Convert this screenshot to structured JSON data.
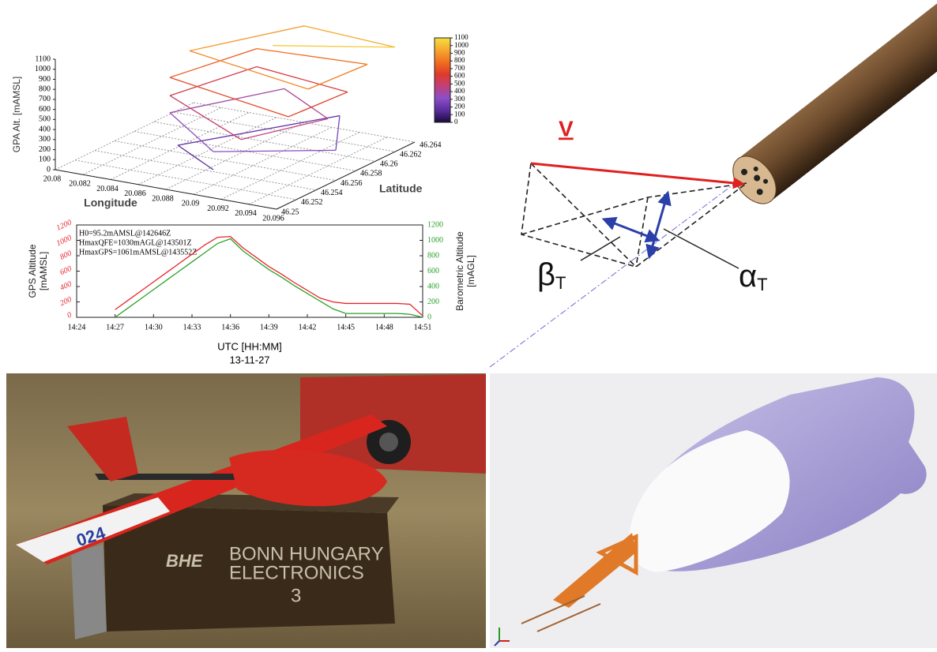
{
  "chart_data": [
    {
      "type": "line3d",
      "zlabel": "GPA Alt. [mAMSL]",
      "xlabel": "Longitude",
      "ylabel": "Latitude",
      "xlim": [
        20.08,
        20.096
      ],
      "xticks": [
        20.08,
        20.082,
        20.084,
        20.086,
        20.088,
        20.09,
        20.092,
        20.094,
        20.096
      ],
      "ylim": [
        46.25,
        46.264
      ],
      "yticks": [
        46.25,
        46.252,
        46.254,
        46.256,
        46.258,
        46.26,
        46.262,
        46.264
      ],
      "zlim": [
        0,
        1100
      ],
      "zticks": [
        0,
        100,
        200,
        300,
        400,
        500,
        600,
        700,
        800,
        900,
        1000,
        1100
      ],
      "colorbar_lim": [
        0,
        1100
      ],
      "colorbar_ticks": [
        0,
        100,
        200,
        300,
        400,
        500,
        600,
        700,
        800,
        900,
        1000,
        1100
      ],
      "colormap": [
        "#1a0a3d",
        "#5a2d9c",
        "#8a4fc8",
        "#c0407a",
        "#e03a2a",
        "#f07020",
        "#f5a830",
        "#f5e040"
      ],
      "grid": true,
      "series": [
        {
          "x": [
            20.09,
            20.086,
            20.092,
            20.096,
            20.09,
            20.084,
            20.088,
            20.094,
            20.092,
            20.084,
            20.086,
            20.094,
            20.094,
            20.084,
            20.086,
            20.094,
            20.094,
            20.084,
            20.088,
            20.096,
            20.09
          ],
          "y": [
            46.252,
            46.254,
            46.262,
            46.256,
            46.252,
            46.256,
            46.262,
            46.258,
            46.252,
            46.256,
            46.262,
            46.26,
            46.254,
            46.256,
            46.262,
            46.262,
            46.256,
            46.258,
            46.264,
            46.262,
            46.258
          ],
          "z": [
            150,
            200,
            260,
            300,
            330,
            380,
            430,
            470,
            500,
            550,
            600,
            640,
            680,
            730,
            780,
            820,
            860,
            900,
            960,
            1040,
            1100
          ]
        }
      ]
    },
    {
      "type": "line",
      "xlabel": "UTC [HH:MM]",
      "subtitle": "13-11-27",
      "ylabel": [
        "GPS Altitude",
        "[mAMSL]"
      ],
      "y2label": [
        "Barometric Altitude",
        "[mAGL]"
      ],
      "annotations": [
        "H0=95.2mAMSL@142646Z",
        "HmaxQFE=1030mAGL@143501Z",
        "HmaxGPS=1061mAMSL@143552Z"
      ],
      "x": [
        "14:27",
        "14:28",
        "14:29",
        "14:30",
        "14:31",
        "14:32",
        "14:33",
        "14:34",
        "14:35",
        "14:36",
        "14:37",
        "14:38",
        "14:39",
        "14:40",
        "14:41",
        "14:42",
        "14:43",
        "14:44",
        "14:45",
        "14:46",
        "14:47",
        "14:48",
        "14:49",
        "14:50",
        "14:51"
      ],
      "xlim": [
        "14:24",
        "14:51"
      ],
      "xticks": [
        "14:24",
        "14:27",
        "14:30",
        "14:33",
        "14:36",
        "14:39",
        "14:42",
        "14:45",
        "14:48",
        "14:51"
      ],
      "ylim": [
        0,
        1200
      ],
      "yticks": [
        0,
        200,
        400,
        600,
        800,
        1000,
        1200
      ],
      "y2lim": [
        0,
        1200
      ],
      "y2ticks": [
        0,
        200,
        400,
        600,
        800,
        1000,
        1200
      ],
      "series": [
        {
          "name": "GPS Altitude",
          "color": "#e8262a",
          "values": [
            100,
            220,
            340,
            460,
            580,
            700,
            820,
            940,
            1040,
            1050,
            900,
            780,
            660,
            560,
            450,
            350,
            250,
            200,
            180,
            180,
            180,
            180,
            180,
            170,
            20
          ]
        },
        {
          "name": "Barometric Altitude",
          "color": "#2ca02c",
          "axis": "y2",
          "values": [
            0,
            120,
            240,
            360,
            480,
            600,
            720,
            840,
            960,
            1020,
            860,
            740,
            620,
            520,
            410,
            310,
            210,
            110,
            50,
            50,
            50,
            50,
            50,
            40,
            0
          ]
        }
      ]
    }
  ],
  "diagram": {
    "velocity": "V",
    "beta": "β",
    "alpha": "α",
    "subscript": "T"
  },
  "photo": {
    "wing_number": "024",
    "logo": "BHE",
    "case_text": [
      "BONN HUNGARY",
      "ELECTRONICS",
      "3"
    ]
  }
}
